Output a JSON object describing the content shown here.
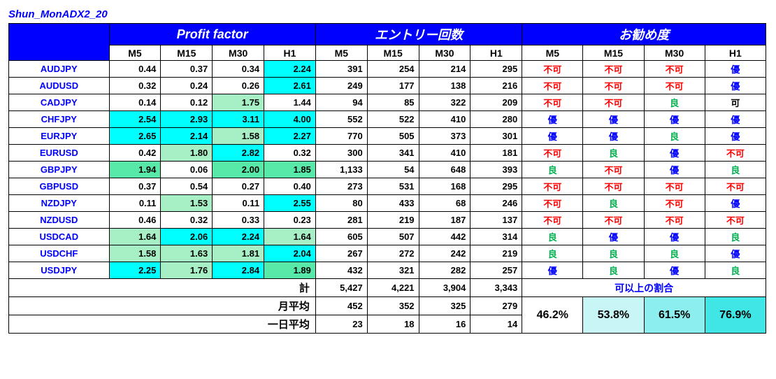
{
  "title": "Shun_MonADX2_20",
  "headers": {
    "profit_factor": "Profit factor",
    "entry_count": "エントリー回数",
    "recommend": "お勧め度",
    "tf": [
      "M5",
      "M15",
      "M30",
      "H1"
    ]
  },
  "colors": {
    "header_bg": "#0000ff",
    "header_fg": "#ffffff",
    "pair_fg": "#0000ff",
    "pf_cyan": "#00ffff",
    "pf_green_light": "#a7f0c5",
    "pf_green": "#58e8a8",
    "reco_red": "#ff0000",
    "reco_blue": "#0000ff",
    "reco_green": "#00b050",
    "pct_bg": [
      "#ffffff",
      "#c8f5f5",
      "#8ceeee",
      "#40e5e5"
    ]
  },
  "reco_map": {
    "fuka": "不可",
    "yu": "優",
    "ryo": "良",
    "ka": "可"
  },
  "rows": [
    {
      "pair": "AUDJPY",
      "pf": [
        {
          "v": "0.44",
          "bg": ""
        },
        {
          "v": "0.37",
          "bg": ""
        },
        {
          "v": "0.34",
          "bg": ""
        },
        {
          "v": "2.24",
          "bg": "pf_cyan"
        }
      ],
      "ent": [
        "391",
        "254",
        "214",
        "295"
      ],
      "reco": [
        "fuka",
        "fuka",
        "fuka",
        "yu"
      ]
    },
    {
      "pair": "AUDUSD",
      "pf": [
        {
          "v": "0.32",
          "bg": ""
        },
        {
          "v": "0.24",
          "bg": ""
        },
        {
          "v": "0.26",
          "bg": ""
        },
        {
          "v": "2.61",
          "bg": "pf_cyan"
        }
      ],
      "ent": [
        "249",
        "177",
        "138",
        "216"
      ],
      "reco": [
        "fuka",
        "fuka",
        "fuka",
        "yu"
      ]
    },
    {
      "pair": "CADJPY",
      "pf": [
        {
          "v": "0.14",
          "bg": ""
        },
        {
          "v": "0.12",
          "bg": ""
        },
        {
          "v": "1.75",
          "bg": "pf_green_light"
        },
        {
          "v": "1.44",
          "bg": ""
        }
      ],
      "ent": [
        "94",
        "85",
        "322",
        "209"
      ],
      "reco": [
        "fuka",
        "fuka",
        "ryo",
        "ka"
      ]
    },
    {
      "pair": "CHFJPY",
      "pf": [
        {
          "v": "2.54",
          "bg": "pf_cyan"
        },
        {
          "v": "2.93",
          "bg": "pf_cyan"
        },
        {
          "v": "3.11",
          "bg": "pf_cyan"
        },
        {
          "v": "4.00",
          "bg": "pf_cyan"
        }
      ],
      "ent": [
        "552",
        "522",
        "410",
        "280"
      ],
      "reco": [
        "yu",
        "yu",
        "yu",
        "yu"
      ]
    },
    {
      "pair": "EURJPY",
      "pf": [
        {
          "v": "2.65",
          "bg": "pf_cyan"
        },
        {
          "v": "2.14",
          "bg": "pf_cyan"
        },
        {
          "v": "1.58",
          "bg": "pf_green_light"
        },
        {
          "v": "2.27",
          "bg": "pf_cyan"
        }
      ],
      "ent": [
        "770",
        "505",
        "373",
        "301"
      ],
      "reco": [
        "yu",
        "yu",
        "ryo",
        "yu"
      ]
    },
    {
      "pair": "EURUSD",
      "pf": [
        {
          "v": "0.42",
          "bg": ""
        },
        {
          "v": "1.80",
          "bg": "pf_green_light"
        },
        {
          "v": "2.82",
          "bg": "pf_cyan"
        },
        {
          "v": "0.32",
          "bg": ""
        }
      ],
      "ent": [
        "300",
        "341",
        "410",
        "181"
      ],
      "reco": [
        "fuka",
        "ryo",
        "yu",
        "fuka"
      ]
    },
    {
      "pair": "GBPJPY",
      "pf": [
        {
          "v": "1.94",
          "bg": "pf_green"
        },
        {
          "v": "0.06",
          "bg": ""
        },
        {
          "v": "2.00",
          "bg": "pf_green"
        },
        {
          "v": "1.85",
          "bg": "pf_green"
        }
      ],
      "ent": [
        "1,133",
        "54",
        "648",
        "393"
      ],
      "reco": [
        "ryo",
        "fuka",
        "yu",
        "ryo"
      ]
    },
    {
      "pair": "GBPUSD",
      "pf": [
        {
          "v": "0.37",
          "bg": ""
        },
        {
          "v": "0.54",
          "bg": ""
        },
        {
          "v": "0.27",
          "bg": ""
        },
        {
          "v": "0.40",
          "bg": ""
        }
      ],
      "ent": [
        "273",
        "531",
        "168",
        "295"
      ],
      "reco": [
        "fuka",
        "fuka",
        "fuka",
        "fuka"
      ]
    },
    {
      "pair": "NZDJPY",
      "pf": [
        {
          "v": "0.11",
          "bg": ""
        },
        {
          "v": "1.53",
          "bg": "pf_green_light"
        },
        {
          "v": "0.11",
          "bg": ""
        },
        {
          "v": "2.55",
          "bg": "pf_cyan"
        }
      ],
      "ent": [
        "80",
        "433",
        "68",
        "246"
      ],
      "reco": [
        "fuka",
        "ryo",
        "fuka",
        "yu"
      ]
    },
    {
      "pair": "NZDUSD",
      "pf": [
        {
          "v": "0.46",
          "bg": ""
        },
        {
          "v": "0.32",
          "bg": ""
        },
        {
          "v": "0.33",
          "bg": ""
        },
        {
          "v": "0.23",
          "bg": ""
        }
      ],
      "ent": [
        "281",
        "219",
        "187",
        "137"
      ],
      "reco": [
        "fuka",
        "fuka",
        "fuka",
        "fuka"
      ]
    },
    {
      "pair": "USDCAD",
      "pf": [
        {
          "v": "1.64",
          "bg": "pf_green_light"
        },
        {
          "v": "2.06",
          "bg": "pf_cyan"
        },
        {
          "v": "2.24",
          "bg": "pf_cyan"
        },
        {
          "v": "1.64",
          "bg": "pf_green_light"
        }
      ],
      "ent": [
        "605",
        "507",
        "442",
        "314"
      ],
      "reco": [
        "ryo",
        "yu",
        "yu",
        "ryo"
      ]
    },
    {
      "pair": "USDCHF",
      "pf": [
        {
          "v": "1.58",
          "bg": "pf_green_light"
        },
        {
          "v": "1.63",
          "bg": "pf_green_light"
        },
        {
          "v": "1.81",
          "bg": "pf_green_light"
        },
        {
          "v": "2.04",
          "bg": "pf_cyan"
        }
      ],
      "ent": [
        "267",
        "272",
        "242",
        "219"
      ],
      "reco": [
        "ryo",
        "ryo",
        "ryo",
        "yu"
      ]
    },
    {
      "pair": "USDJPY",
      "pf": [
        {
          "v": "2.25",
          "bg": "pf_cyan"
        },
        {
          "v": "1.76",
          "bg": "pf_green_light"
        },
        {
          "v": "2.84",
          "bg": "pf_cyan"
        },
        {
          "v": "1.89",
          "bg": "pf_green"
        }
      ],
      "ent": [
        "432",
        "321",
        "282",
        "257"
      ],
      "reco": [
        "yu",
        "ryo",
        "yu",
        "ryo"
      ]
    }
  ],
  "summary": {
    "total_label": "計",
    "total": [
      "5,427",
      "4,221",
      "3,904",
      "3,343"
    ],
    "month_label": "月平均",
    "month": [
      "452",
      "352",
      "325",
      "279"
    ],
    "day_label": "一日平均",
    "day": [
      "23",
      "18",
      "16",
      "14"
    ],
    "pct_label": "可以上の割合",
    "pct": [
      "46.2%",
      "53.8%",
      "61.5%",
      "76.9%"
    ]
  }
}
